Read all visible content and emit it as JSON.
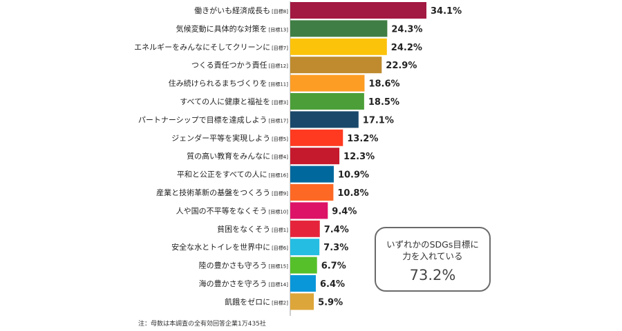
{
  "chart_data": {
    "type": "bar",
    "orientation": "horizontal",
    "categories": [
      {
        "label": "働きがいも経済成長も",
        "tag": "[目標8]"
      },
      {
        "label": "気候変動に具体的な対策を",
        "tag": "[目標13]"
      },
      {
        "label": "エネルギーをみんなにそしてクリーンに",
        "tag": "[目標7]"
      },
      {
        "label": "つくる責任つかう責任",
        "tag": "[目標12]"
      },
      {
        "label": "住み続けられるまちづくりを",
        "tag": "[目標11]"
      },
      {
        "label": "すべての人に健康と福祉を",
        "tag": "[目標3]"
      },
      {
        "label": "パートナーシップで目標を達成しよう",
        "tag": "[目標17]"
      },
      {
        "label": "ジェンダー平等を実現しよう",
        "tag": "[目標5]"
      },
      {
        "label": "質の高い教育をみんなに",
        "tag": "[目標4]"
      },
      {
        "label": "平和と公正をすべての人に",
        "tag": "[目標16]"
      },
      {
        "label": "産業と技術革新の基盤をつくろう",
        "tag": "[目標9]"
      },
      {
        "label": "人や国の不平等をなくそう",
        "tag": "[目標10]"
      },
      {
        "label": "貧困をなくそう",
        "tag": "[目標1]"
      },
      {
        "label": "安全な水とトイレを世界中に",
        "tag": "[目標6]"
      },
      {
        "label": "陸の豊かさも守ろう",
        "tag": "[目標15]"
      },
      {
        "label": "海の豊かさを守ろう",
        "tag": "[目標14]"
      },
      {
        "label": "飢餓をゼロに",
        "tag": "[目標2]"
      }
    ],
    "values": [
      34.1,
      24.3,
      24.2,
      22.9,
      18.6,
      18.5,
      17.1,
      13.2,
      12.3,
      10.9,
      10.8,
      9.4,
      7.4,
      7.3,
      6.7,
      6.4,
      5.9
    ],
    "value_labels": [
      "34.1%",
      "24.3%",
      "24.2%",
      "22.9%",
      "18.6%",
      "18.5%",
      "17.1%",
      "13.2%",
      "12.3%",
      "10.9%",
      "10.8%",
      "9.4%",
      "7.4%",
      "7.3%",
      "6.7%",
      "6.4%",
      "5.9%"
    ],
    "colors": [
      "#A21942",
      "#3F7E44",
      "#FCC30B",
      "#BF8B2E",
      "#FD9D24",
      "#4C9F38",
      "#19486A",
      "#FF3A21",
      "#C5192D",
      "#00689D",
      "#FD6925",
      "#DD1367",
      "#E5243B",
      "#26BDE2",
      "#56C02B",
      "#0A97D9",
      "#DDA63A"
    ],
    "xlim": [
      0,
      40
    ],
    "grid": false,
    "legend": "none"
  },
  "summary": {
    "text": "いずれかのSDGs目標に力を入れている",
    "value": "73.2%"
  },
  "footnote": "注：母数は本調査の全有効回答企業1万435社"
}
